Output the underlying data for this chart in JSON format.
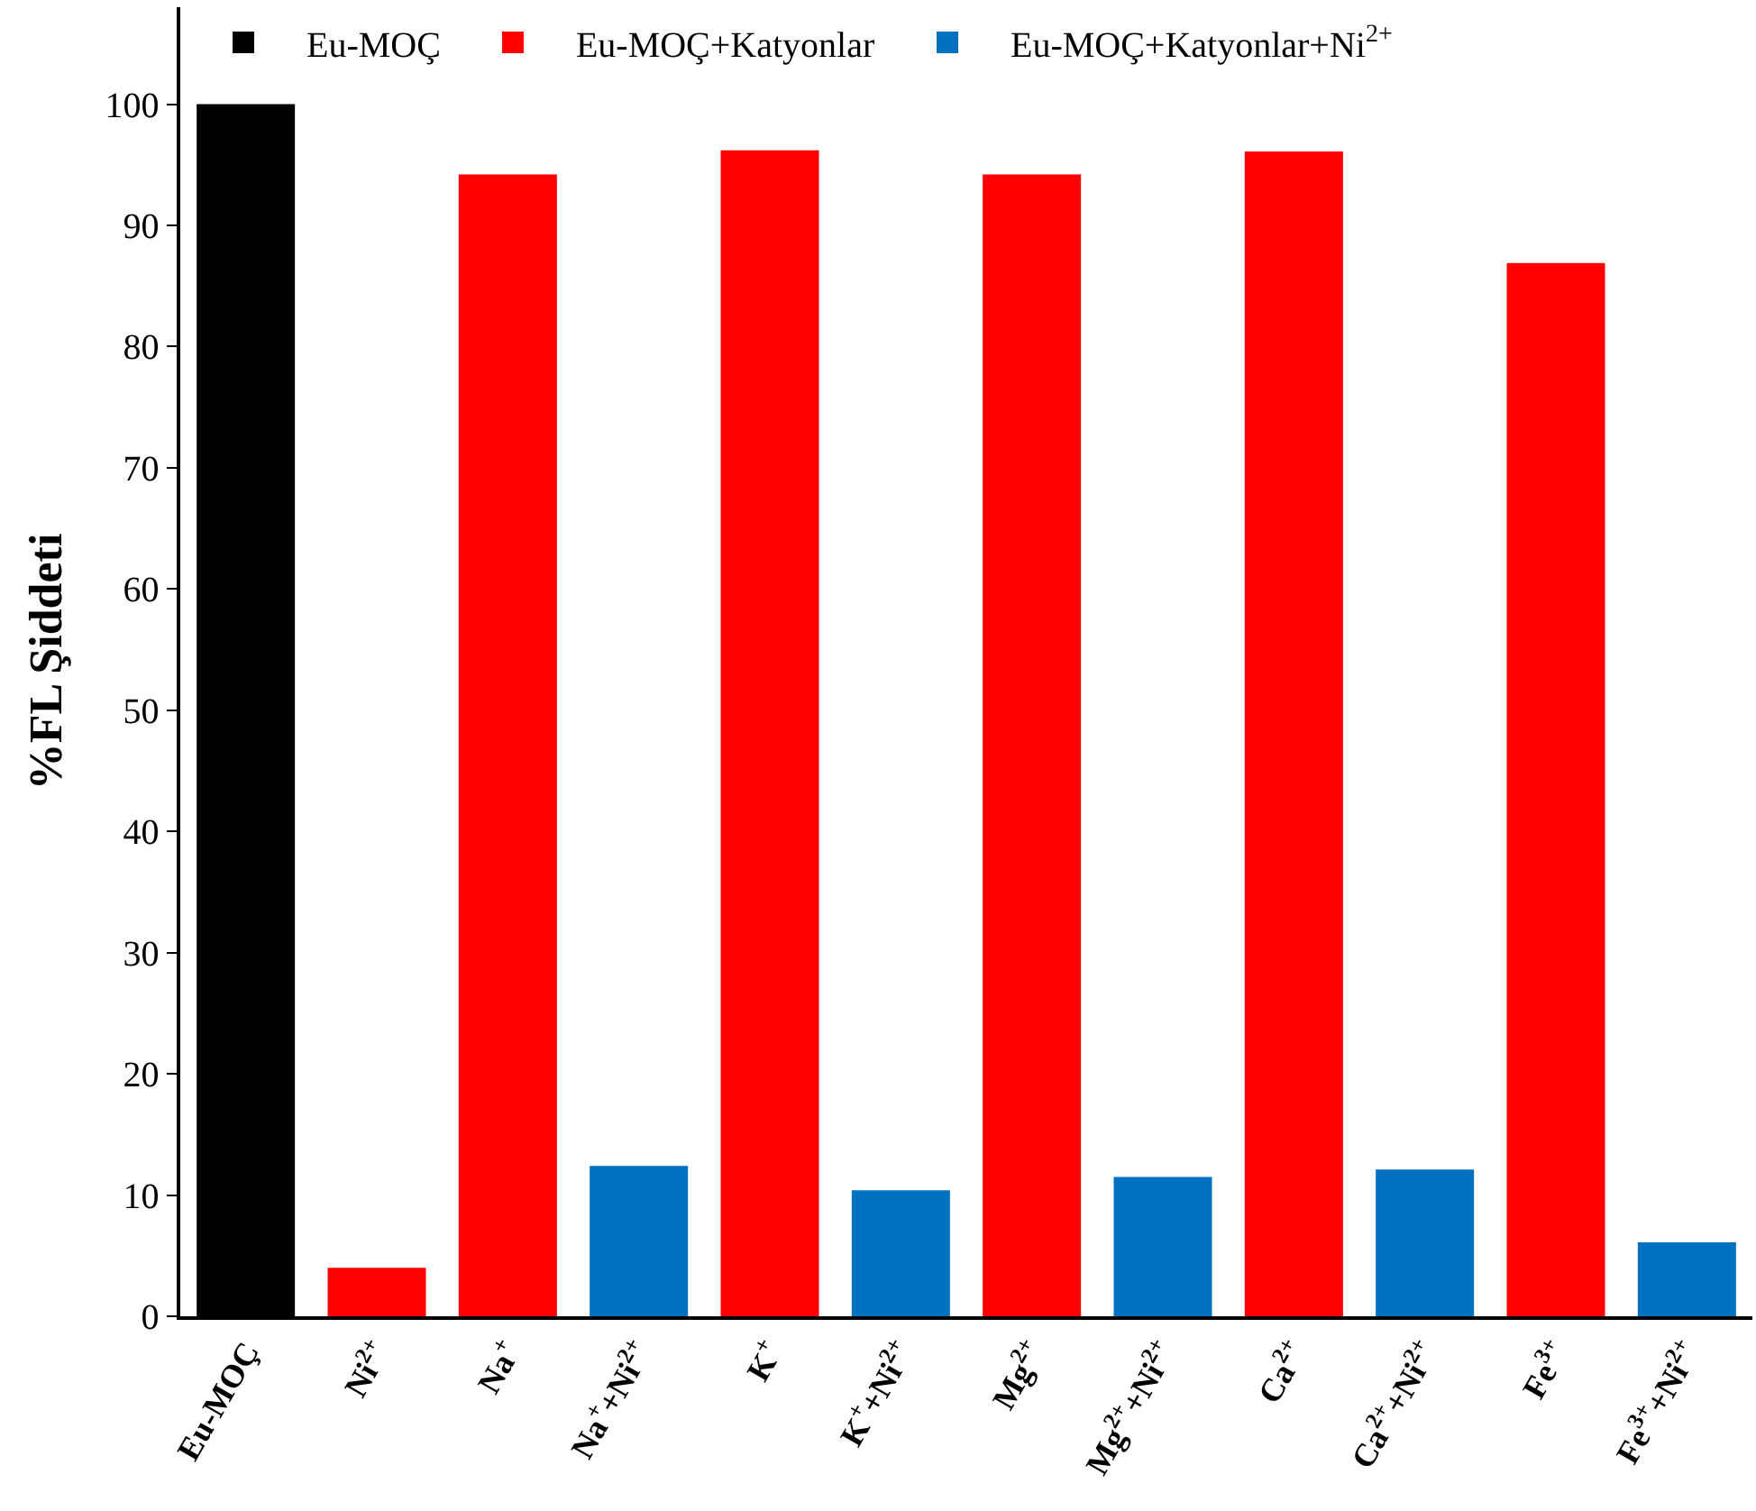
{
  "chart_data": {
    "type": "bar",
    "ylabel": "%FL Şiddeti",
    "categories": [
      "Eu-MOÇ",
      "Ni$^{2+}$",
      "Na$^{+}$",
      "Na$^{+}$+Ni$^{2+}$",
      "K$^{+}$",
      "K$^{+}$+Ni$^{2+}$",
      "Mg$^{2+}$",
      "Mg$^{2+}$+Ni$^{2+}$",
      "Ca$^{2+}$",
      "Ca$^{2+}$+Ni$^{2+}$",
      "Fe$^{3+}$",
      "Fe$^{3+}$+Ni$^{2+}$"
    ],
    "series": [
      {
        "name": "Eu-MOÇ",
        "color": "#000000",
        "values": [
          100,
          null,
          null,
          null,
          null,
          null,
          null,
          null,
          null,
          null,
          null,
          null
        ]
      },
      {
        "name": "Eu-MOÇ+Katyonlar",
        "color": "#ff0000",
        "values": [
          null,
          4,
          94.2,
          null,
          96.2,
          null,
          94.2,
          null,
          96.1,
          null,
          86.9,
          null
        ]
      },
      {
        "name": "Eu-MOÇ+Katyonlar+Ni$^{2+}$",
        "color": "#0070c0",
        "values": [
          null,
          null,
          null,
          12.4,
          null,
          10.4,
          null,
          11.5,
          null,
          12.1,
          null,
          6.1
        ]
      }
    ],
    "ylim": [
      0,
      108
    ],
    "yticks": [
      0,
      10,
      20,
      30,
      40,
      50,
      60,
      70,
      80,
      90,
      100
    ],
    "grid": false,
    "legend": "top"
  }
}
